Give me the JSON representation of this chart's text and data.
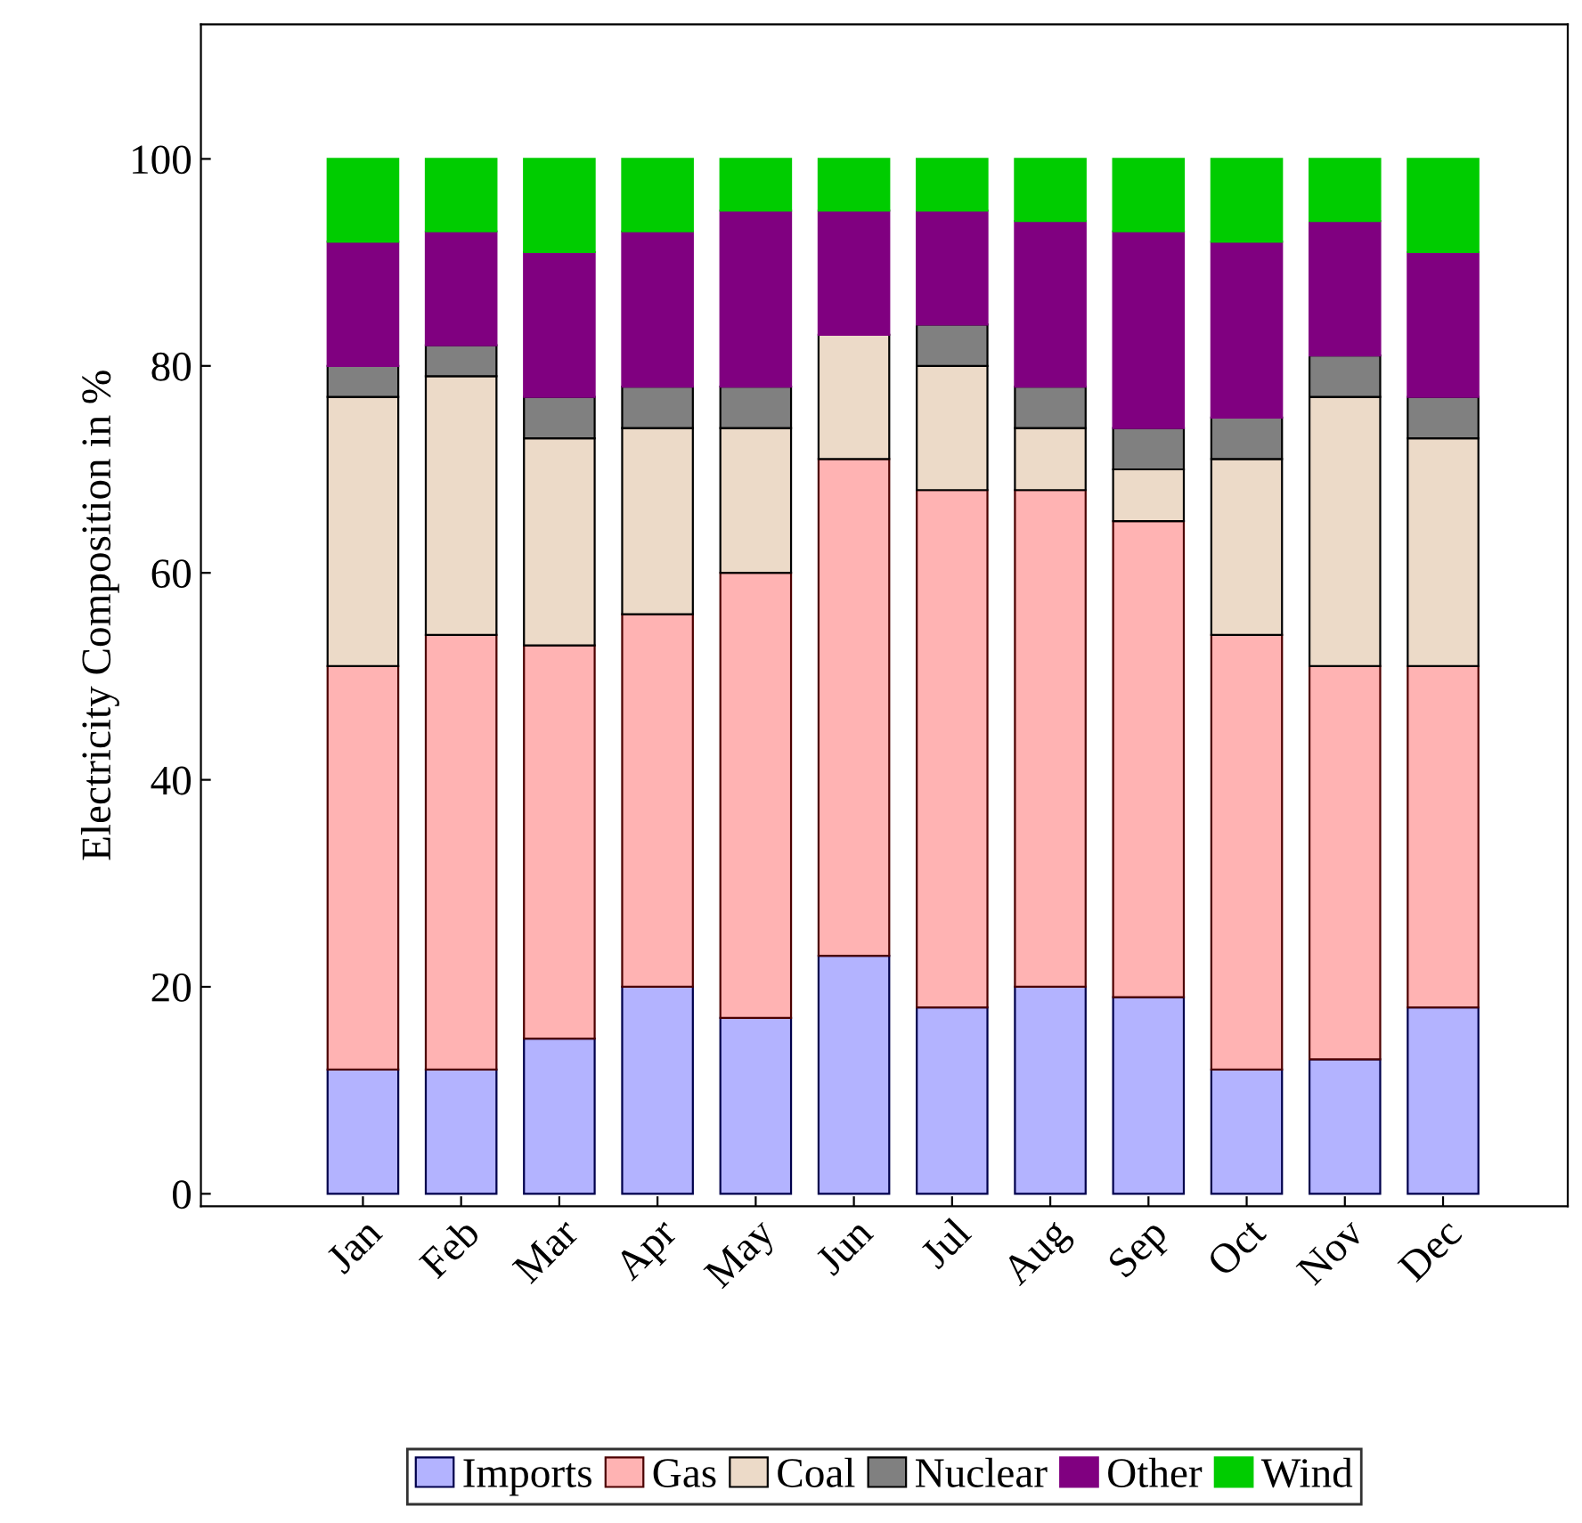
{
  "chart_data": {
    "type": "bar",
    "stacked": true,
    "ylabel": "Electricity Composition in %",
    "categories": [
      "Jan",
      "Feb",
      "Mar",
      "Apr",
      "May",
      "Jun",
      "Jul",
      "Aug",
      "Sep",
      "Oct",
      "Nov",
      "Dec"
    ],
    "series": [
      {
        "name": "Imports",
        "color": "#b3b3ff",
        "values": [
          12,
          12,
          15,
          20,
          17,
          23,
          18,
          20,
          19,
          12,
          13,
          18
        ]
      },
      {
        "name": "Gas",
        "color": "#ffb3b3",
        "values": [
          39,
          42,
          38,
          36,
          43,
          48,
          50,
          48,
          46,
          42,
          38,
          33
        ]
      },
      {
        "name": "Coal",
        "color": "#ecdac8",
        "values": [
          26,
          25,
          20,
          18,
          14,
          12,
          12,
          6,
          5,
          17,
          26,
          22
        ]
      },
      {
        "name": "Nuclear",
        "color": "#808080",
        "values": [
          3,
          3,
          4,
          4,
          4,
          0,
          4,
          4,
          4,
          4,
          4,
          4
        ]
      },
      {
        "name": "Other",
        "color": "#800080",
        "values": [
          12,
          11,
          14,
          15,
          17,
          12,
          11,
          16,
          19,
          17,
          13,
          14
        ]
      },
      {
        "name": "Wind",
        "color": "#00cc00",
        "values": [
          8,
          7,
          9,
          7,
          5,
          5,
          5,
          6,
          7,
          8,
          6,
          9
        ]
      }
    ],
    "ylim": [
      -1.2,
      113
    ],
    "yticks": [
      0,
      20,
      40,
      60,
      80,
      100
    ],
    "grid": false,
    "legend": "bottom"
  }
}
